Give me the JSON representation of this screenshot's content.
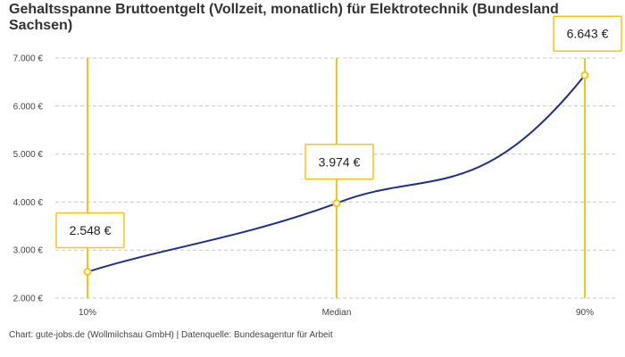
{
  "chart_data": {
    "type": "line",
    "title": "Gehaltsspanne Bruttoentgelt (Vollzeit, monatlich) für Elektrotechnik (Bundesland Sachsen)",
    "categories": [
      "10%",
      "Median",
      "90%"
    ],
    "values": [
      2548,
      3974,
      6643
    ],
    "value_labels": [
      "2.548 €",
      "3.974 €",
      "6.643 €"
    ],
    "yticks": [
      2000,
      3000,
      4000,
      5000,
      6000,
      7000
    ],
    "ytick_labels": [
      "2.000 €",
      "3.000 €",
      "4.000 €",
      "5.000 €",
      "6.000 €",
      "7.000 €"
    ],
    "ylim": [
      2000,
      7000
    ],
    "grid": true,
    "colors": {
      "line": "#1f2f8a",
      "accent": "#f5c518",
      "grid": "#c8c8c8"
    }
  },
  "footer": "Chart: gute-jobs.de (Wollmilchsau GmbH) | Datenquelle: Bundesagentur für Arbeit"
}
